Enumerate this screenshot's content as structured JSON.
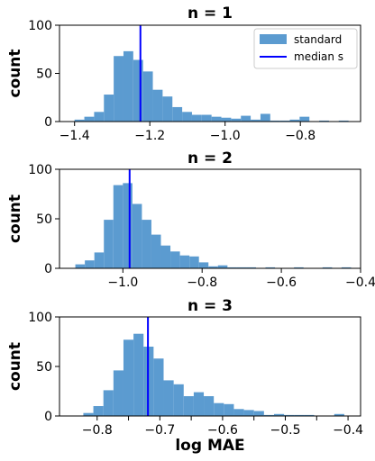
{
  "chart_data": [
    {
      "type": "bar",
      "title": "n = 1",
      "ylabel": "count",
      "xlabel": "",
      "xlim": [
        -1.44,
        -0.64
      ],
      "ylim": [
        0,
        100
      ],
      "xticks": [
        -1.4,
        -1.2,
        -1.0,
        -0.8
      ],
      "xtick_labels": [
        "−1.4",
        "−1.2",
        "−1.0",
        "−0.8"
      ],
      "yticks": [
        0,
        50,
        100
      ],
      "ytick_labels": [
        "0",
        "50",
        "100"
      ],
      "bin_edges": [
        -1.4,
        -1.374,
        -1.348,
        -1.322,
        -1.296,
        -1.27,
        -1.244,
        -1.218,
        -1.192,
        -1.166,
        -1.14,
        -1.114,
        -1.088,
        -1.062,
        -1.036,
        -1.01,
        -0.984,
        -0.958,
        -0.932,
        -0.906,
        -0.88,
        -0.854,
        -0.828,
        -0.802,
        -0.776,
        -0.75,
        -0.724,
        -0.698,
        -0.672
      ],
      "counts": [
        2,
        5,
        10,
        28,
        68,
        73,
        64,
        52,
        33,
        26,
        15,
        10,
        7,
        7,
        5,
        4,
        3,
        6,
        2,
        8,
        1,
        1,
        2,
        5,
        0,
        1,
        0,
        1
      ],
      "median": -1.225,
      "series": [
        {
          "name": "standard",
          "color": "#5b9bd0"
        }
      ],
      "median_line": {
        "name": "median s",
        "color": "#0000ff"
      },
      "legend": "top-right"
    },
    {
      "type": "bar",
      "title": "n = 2",
      "ylabel": "count",
      "xlabel": "",
      "xlim": [
        -1.16,
        -0.4
      ],
      "ylim": [
        0,
        100
      ],
      "xticks": [
        -1.0,
        -0.8,
        -0.6,
        -0.4
      ],
      "xtick_labels": [
        "−1.0",
        "−0.8",
        "−0.6",
        "−0.4"
      ],
      "yticks": [
        0,
        50,
        100
      ],
      "ytick_labels": [
        "0",
        "50",
        "100"
      ],
      "bin_edges": [
        -1.12,
        -1.096,
        -1.072,
        -1.048,
        -1.024,
        -1.0,
        -0.976,
        -0.952,
        -0.928,
        -0.904,
        -0.88,
        -0.856,
        -0.832,
        -0.808,
        -0.784,
        -0.76,
        -0.736,
        -0.712,
        -0.688,
        -0.664,
        -0.64,
        -0.616,
        -0.592,
        -0.568,
        -0.544,
        -0.52,
        -0.496,
        -0.472,
        -0.448,
        -0.424
      ],
      "counts": [
        4,
        8,
        16,
        49,
        84,
        86,
        65,
        49,
        34,
        23,
        17,
        13,
        12,
        6,
        2,
        3,
        1,
        1,
        1,
        0,
        1,
        0,
        0,
        1,
        0,
        0,
        1,
        0,
        1
      ],
      "median": -0.983,
      "series": [
        {
          "name": "standard",
          "color": "#5b9bd0"
        }
      ],
      "median_line": {
        "name": "median s",
        "color": "#0000ff"
      }
    },
    {
      "type": "bar",
      "title": "n = 3",
      "ylabel": "count",
      "xlabel": "log MAE",
      "xlim": [
        -0.86,
        -0.38
      ],
      "ylim": [
        0,
        100
      ],
      "xticks": [
        -0.8,
        -0.75,
        -0.7,
        -0.65,
        -0.6,
        -0.55,
        -0.5,
        -0.45,
        -0.4
      ],
      "xtick_labels": [
        "−0.8",
        "",
        "−0.7",
        "",
        "−0.6",
        "",
        "−0.5",
        "",
        "−0.4"
      ],
      "yticks": [
        0,
        50,
        100
      ],
      "ytick_labels": [
        "0",
        "50",
        "100"
      ],
      "bin_edges": [
        -0.822,
        -0.806,
        -0.79,
        -0.774,
        -0.758,
        -0.742,
        -0.726,
        -0.71,
        -0.694,
        -0.678,
        -0.662,
        -0.646,
        -0.63,
        -0.614,
        -0.598,
        -0.582,
        -0.566,
        -0.55,
        -0.534,
        -0.518,
        -0.502,
        -0.486,
        -0.47,
        -0.454,
        -0.438,
        -0.422,
        -0.406
      ],
      "counts": [
        3,
        10,
        26,
        46,
        77,
        83,
        70,
        58,
        36,
        32,
        20,
        24,
        20,
        13,
        12,
        7,
        6,
        5,
        1,
        2,
        1,
        1,
        1,
        0,
        0,
        2
      ],
      "median": -0.719,
      "series": [
        {
          "name": "standard",
          "color": "#5b9bd0"
        }
      ],
      "median_line": {
        "name": "median s",
        "color": "#0000ff"
      }
    }
  ]
}
